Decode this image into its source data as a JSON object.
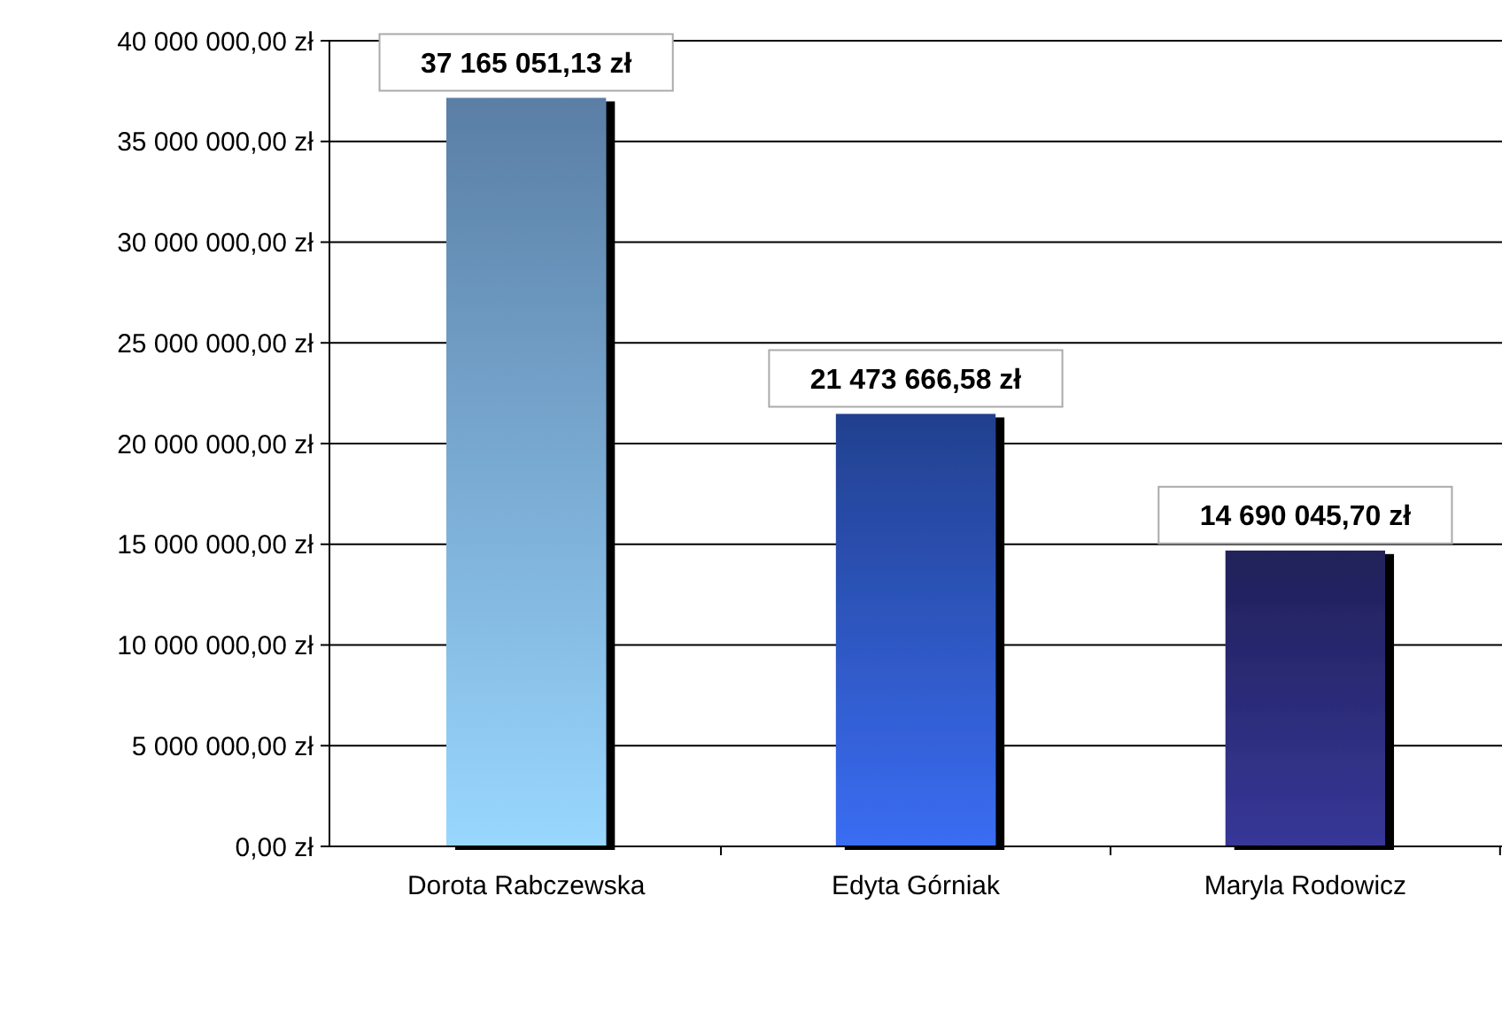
{
  "chart_data": {
    "type": "bar",
    "categories": [
      "Dorota Rabczewska",
      "Edyta Górniak",
      "Maryla Rodowicz"
    ],
    "values": [
      37165051.13,
      21473666.58,
      14690045.7
    ],
    "colors": [
      "#6f9ccc",
      "#2a4fb0",
      "#28286e"
    ],
    "value_labels": [
      "37 165 051,13 zł",
      "21 473 666,58 zł",
      "14 690 045,70 zł"
    ],
    "ylim": [
      0,
      40000000
    ],
    "yticks": [
      {
        "value": 0,
        "label": "0,00 zł"
      },
      {
        "value": 5000000,
        "label": "5 000 000,00 zł"
      },
      {
        "value": 10000000,
        "label": "10 000 000,00 zł"
      },
      {
        "value": 15000000,
        "label": "15 000 000,00 zł"
      },
      {
        "value": 20000000,
        "label": "20 000 000,00 zł"
      },
      {
        "value": 25000000,
        "label": "25 000 000,00 zł"
      },
      {
        "value": 30000000,
        "label": "30 000 000,00 zł"
      },
      {
        "value": 35000000,
        "label": "35 000 000,00 zł"
      },
      {
        "value": 40000000,
        "label": "40 000 000,00 zł"
      }
    ],
    "grid": "y"
  }
}
